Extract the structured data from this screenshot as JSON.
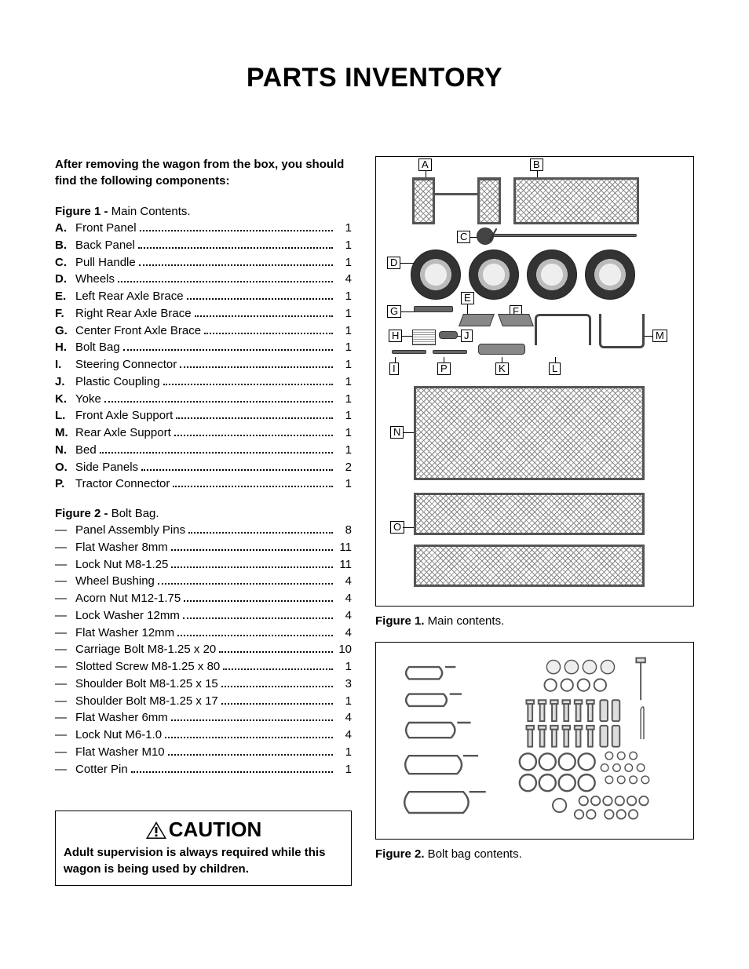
{
  "title": "PARTS INVENTORY",
  "intro": "After removing the wagon from the box, you should find the following components:",
  "figure1": {
    "heading_bold": "Figure 1 - ",
    "heading_rest": "Main Contents.",
    "caption_bold": "Figure 1.",
    "caption_rest": " Main contents.",
    "items": [
      {
        "letter": "A.",
        "name": "Front Panel",
        "qty": "1"
      },
      {
        "letter": "B.",
        "name": "Back Panel",
        "qty": "1"
      },
      {
        "letter": "C.",
        "name": "Pull Handle",
        "qty": "1"
      },
      {
        "letter": "D.",
        "name": "Wheels",
        "qty": "4"
      },
      {
        "letter": "E.",
        "name": "Left Rear Axle Brace",
        "qty": "1"
      },
      {
        "letter": "F.",
        "name": "Right Rear Axle Brace",
        "qty": "1"
      },
      {
        "letter": "G.",
        "name": "Center Front Axle Brace",
        "qty": "1"
      },
      {
        "letter": "H.",
        "name": "Bolt Bag",
        "qty": "1"
      },
      {
        "letter": "I.",
        "name": "Steering Connector",
        "qty": "1"
      },
      {
        "letter": "J.",
        "name": "Plastic Coupling",
        "qty": "1"
      },
      {
        "letter": "K.",
        "name": "Yoke",
        "qty": "1"
      },
      {
        "letter": "L.",
        "name": "Front Axle Support",
        "qty": "1"
      },
      {
        "letter": "M.",
        "name": "Rear Axle Support",
        "qty": "1"
      },
      {
        "letter": "N.",
        "name": "Bed",
        "qty": "1"
      },
      {
        "letter": "O.",
        "name": "Side Panels",
        "qty": "2"
      },
      {
        "letter": "P.",
        "name": "Tractor Connector",
        "qty": "1"
      }
    ],
    "callouts": [
      "A",
      "B",
      "C",
      "D",
      "E",
      "F",
      "G",
      "H",
      "I",
      "J",
      "K",
      "L",
      "M",
      "N",
      "O",
      "P"
    ]
  },
  "figure2": {
    "heading_bold": "Figure 2 - ",
    "heading_rest": "Bolt Bag.",
    "caption_bold": "Figure 2.",
    "caption_rest": " Bolt bag contents.",
    "items": [
      {
        "name": "Panel Assembly Pins",
        "qty": "8"
      },
      {
        "name": "Flat Washer 8mm",
        "qty": "11"
      },
      {
        "name": "Lock Nut M8-1.25",
        "qty": "11"
      },
      {
        "name": "Wheel Bushing",
        "qty": "4"
      },
      {
        "name": "Acorn Nut M12-1.75",
        "qty": "4"
      },
      {
        "name": "Lock Washer 12mm",
        "qty": "4"
      },
      {
        "name": "Flat Washer 12mm",
        "qty": "4"
      },
      {
        "name": "Carriage Bolt M8-1.25 x 20",
        "qty": "10"
      },
      {
        "name": "Slotted  Screw M8-1.25 x 80",
        "qty": "1"
      },
      {
        "name": "Shoulder Bolt M8-1.25 x 15",
        "qty": "3"
      },
      {
        "name": "Shoulder Bolt M8-1.25 x 17",
        "qty": "1"
      },
      {
        "name": "Flat Washer 6mm",
        "qty": "4"
      },
      {
        "name": "Lock Nut M6-1.0",
        "qty": "4"
      },
      {
        "name": "Flat Washer M10",
        "qty": "1"
      },
      {
        "name": "Cotter Pin",
        "qty": "1"
      }
    ]
  },
  "caution": {
    "heading": "CAUTION",
    "text": "Adult supervision is always required while this wagon is being used by children."
  },
  "colors": {
    "text": "#000000",
    "background": "#ffffff",
    "diagram_gray": "#888888"
  }
}
